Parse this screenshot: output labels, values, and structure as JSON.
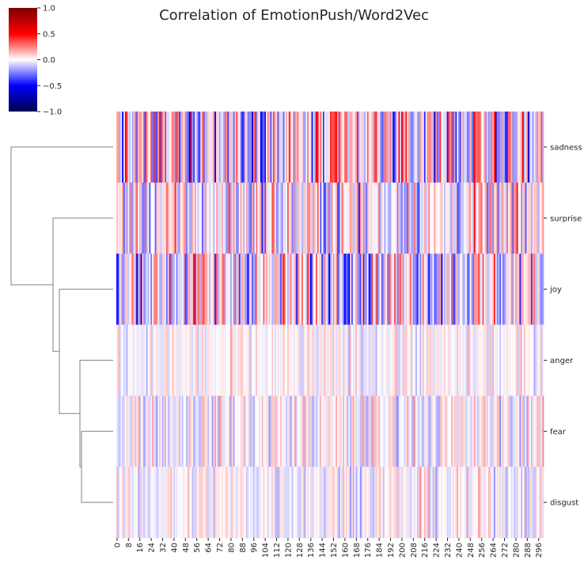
{
  "chart_data": {
    "type": "heatmap",
    "title": "Correlation of EmotionPush/Word2Vec",
    "rows": [
      "sadness",
      "surprise",
      "joy",
      "anger",
      "fear",
      "disgust"
    ],
    "n_columns": 300,
    "x_tick_labels": [
      "0",
      "8",
      "16",
      "24",
      "32",
      "40",
      "48",
      "56",
      "64",
      "72",
      "80",
      "88",
      "96",
      "104",
      "112",
      "120",
      "128",
      "136",
      "144",
      "152",
      "160",
      "168",
      "176",
      "184",
      "192",
      "200",
      "208",
      "216",
      "224",
      "232",
      "240",
      "248",
      "256",
      "264",
      "272",
      "280",
      "288",
      "296"
    ],
    "colormap": "seismic",
    "vmin": -1.0,
    "vmax": 1.0,
    "colorbar_ticks": [
      "1.0",
      "0.5",
      "0.0",
      "−0.5",
      "−1.0"
    ],
    "row_value_spread": {
      "sadness": 0.35,
      "surprise": 0.25,
      "joy": 0.32,
      "anger": 0.1,
      "fear": 0.14,
      "disgust": 0.12
    },
    "dendrogram": "rows clustered: sadness | (surprise | (joy | (anger | (fear | disgust))))",
    "colors": {
      "min": "#00004c",
      "neg": "#0000ff",
      "mid": "#ffffff",
      "pos": "#ff0000",
      "max": "#7f0000",
      "line": "#808080"
    }
  }
}
